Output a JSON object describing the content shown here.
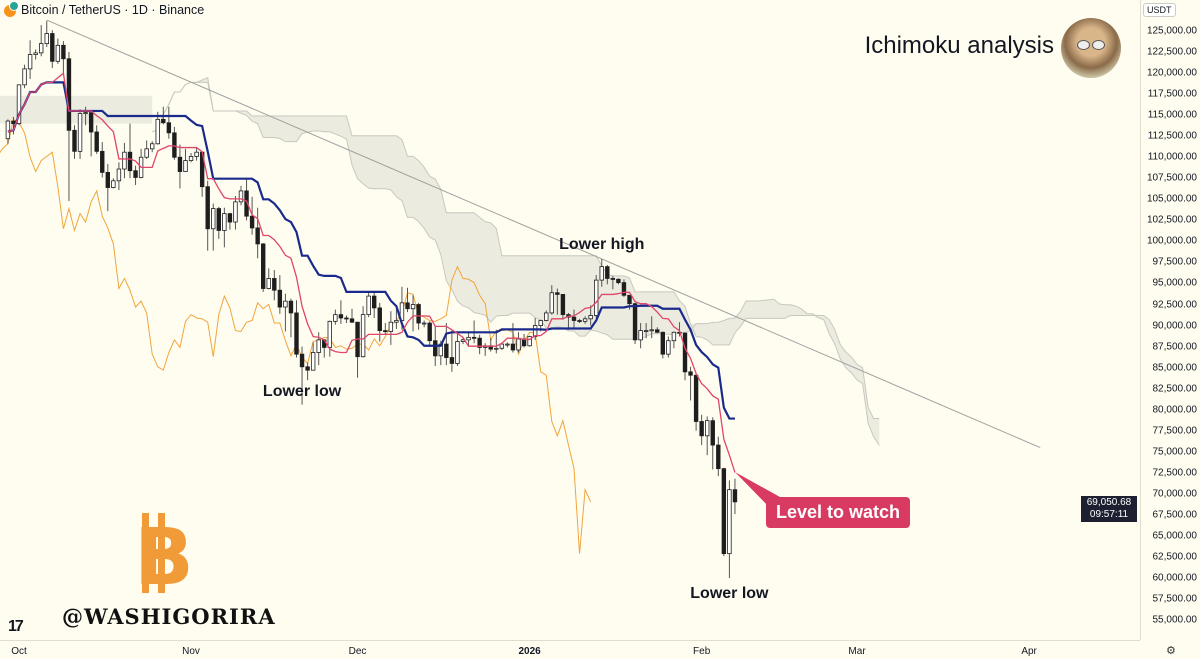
{
  "header": {
    "symbol_title": "Bitcoin / TetherUS · 1D · Binance",
    "icon": "bitcoin-tether-icon"
  },
  "overlay": {
    "title": "Ichimoku analysis",
    "watermark": "@WASHIGORIRA",
    "watermark_logo": "bitcoin-logo",
    "tv_logo": "TradingView"
  },
  "price_axis": {
    "currency": "USDT",
    "labels": [
      "125,000.00",
      "122,500.00",
      "120,000.00",
      "117,500.00",
      "115,000.00",
      "112,500.00",
      "110,000.00",
      "107,500.00",
      "105,000.00",
      "102,500.00",
      "100,000.00",
      "97,500.00",
      "95,000.00",
      "92,500.00",
      "90,000.00",
      "87,500.00",
      "85,000.00",
      "82,500.00",
      "80,000.00",
      "77,500.00",
      "75,000.00",
      "72,500.00",
      "70,000.00",
      "67,500.00",
      "65,000.00",
      "62,500.00",
      "60,000.00",
      "57,500.00",
      "55,000.00"
    ],
    "last_price": "69,050.68",
    "countdown": "09:57:11"
  },
  "time_axis": {
    "labels": [
      {
        "text": "Oct",
        "date": "2025-10-01",
        "bold": false
      },
      {
        "text": "Nov",
        "date": "2025-11-01",
        "bold": false
      },
      {
        "text": "Dec",
        "date": "2025-12-01",
        "bold": false
      },
      {
        "text": "2026",
        "date": "2026-01-01",
        "bold": true
      },
      {
        "text": "Feb",
        "date": "2026-02-01",
        "bold": false
      },
      {
        "text": "Mar",
        "date": "2026-03-01",
        "bold": false
      },
      {
        "text": "Apr",
        "date": "2026-04-01",
        "bold": false
      }
    ]
  },
  "chart_data": {
    "type": "candlestick",
    "title": "Bitcoin / TetherUS · 1D · Binance",
    "ylim": [
      53000,
      127500
    ],
    "grid": false,
    "indicators": [
      "Ichimoku: Tenkan (9)",
      "Kijun (26)",
      "Chikou (26)",
      "Kumo cloud (52)"
    ],
    "colors": {
      "background": "#fffdf0",
      "tenkan": "#e0456a",
      "kijun": "#1a2a8c",
      "chikou": "#f0a53c",
      "cloud": "#dcdcd4",
      "up": "#ffffff",
      "down": "#1e1e1e",
      "trendline": "#a0a0a0",
      "watch": "#d83a62"
    },
    "candles_columns": [
      "date",
      "open",
      "high",
      "low",
      "close"
    ],
    "candles": [
      [
        "2025-09-29",
        112200,
        114500,
        111600,
        114300
      ],
      [
        "2025-09-30",
        114300,
        114800,
        112700,
        114000
      ],
      [
        "2025-10-01",
        114000,
        118600,
        113800,
        118600
      ],
      [
        "2025-10-02",
        118600,
        121000,
        118200,
        120500
      ],
      [
        "2025-10-03",
        120500,
        123900,
        119300,
        122200
      ],
      [
        "2025-10-04",
        122200,
        122800,
        121600,
        122400
      ],
      [
        "2025-10-05",
        122400,
        125700,
        122000,
        123500
      ],
      [
        "2025-10-06",
        123500,
        126200,
        123100,
        124700
      ],
      [
        "2025-10-07",
        124700,
        125100,
        120600,
        121400
      ],
      [
        "2025-10-08",
        121400,
        124100,
        121100,
        123300
      ],
      [
        "2025-10-09",
        123300,
        123800,
        119700,
        121700
      ],
      [
        "2025-10-10",
        121700,
        122500,
        104800,
        113200
      ],
      [
        "2025-10-11",
        113200,
        113800,
        109800,
        110700
      ],
      [
        "2025-10-12",
        110700,
        115700,
        109800,
        115200
      ],
      [
        "2025-10-13",
        115200,
        116000,
        113800,
        115300
      ],
      [
        "2025-10-14",
        115300,
        115500,
        110100,
        113000
      ],
      [
        "2025-10-15",
        113000,
        113800,
        110400,
        110700
      ],
      [
        "2025-10-16",
        110700,
        111800,
        107600,
        108200
      ],
      [
        "2025-10-17",
        108200,
        109200,
        103600,
        106400
      ],
      [
        "2025-10-18",
        106400,
        107500,
        106300,
        107200
      ],
      [
        "2025-10-19",
        107200,
        109400,
        106100,
        108600
      ],
      [
        "2025-10-20",
        108600,
        111700,
        107500,
        110600
      ],
      [
        "2025-10-21",
        110600,
        114000,
        107500,
        108400
      ],
      [
        "2025-10-22",
        108400,
        109000,
        106700,
        107600
      ],
      [
        "2025-10-23",
        107600,
        111000,
        107500,
        110000
      ],
      [
        "2025-10-24",
        110000,
        112000,
        109800,
        111000
      ],
      [
        "2025-10-25",
        111000,
        111900,
        110600,
        111600
      ],
      [
        "2025-10-26",
        111600,
        115400,
        111500,
        114500
      ],
      [
        "2025-10-27",
        114500,
        116000,
        113900,
        114100
      ],
      [
        "2025-10-28",
        114100,
        116000,
        112200,
        112900
      ],
      [
        "2025-10-29",
        112900,
        113600,
        109700,
        110000
      ],
      [
        "2025-10-30",
        110000,
        111500,
        106300,
        108300
      ],
      [
        "2025-10-31",
        108300,
        111000,
        108300,
        109600
      ],
      [
        "2025-11-01",
        109600,
        110500,
        109400,
        110100
      ],
      [
        "2025-11-02",
        110100,
        111200,
        109600,
        110600
      ],
      [
        "2025-11-03",
        110600,
        110700,
        105300,
        106500
      ],
      [
        "2025-11-04",
        106500,
        107200,
        98900,
        101500
      ],
      [
        "2025-11-05",
        101500,
        104500,
        98900,
        103900
      ],
      [
        "2025-11-06",
        103900,
        104100,
        100300,
        101300
      ],
      [
        "2025-11-07",
        101300,
        104000,
        99300,
        103300
      ],
      [
        "2025-11-08",
        103300,
        103400,
        101400,
        102300
      ],
      [
        "2025-11-09",
        102300,
        105400,
        101400,
        104700
      ],
      [
        "2025-11-10",
        104700,
        106600,
        104300,
        106000
      ],
      [
        "2025-11-11",
        106000,
        107400,
        102500,
        103000
      ],
      [
        "2025-11-12",
        103000,
        105300,
        100800,
        101600
      ],
      [
        "2025-11-13",
        101600,
        104000,
        98000,
        99700
      ],
      [
        "2025-11-14",
        99700,
        99800,
        94000,
        94400
      ],
      [
        "2025-11-15",
        94400,
        96800,
        94300,
        95600
      ],
      [
        "2025-11-16",
        95600,
        96600,
        93000,
        94200
      ],
      [
        "2025-11-17",
        94200,
        96000,
        91400,
        92200
      ],
      [
        "2025-11-18",
        92200,
        93800,
        89300,
        92900
      ],
      [
        "2025-11-19",
        92900,
        93200,
        88600,
        91500
      ],
      [
        "2025-11-20",
        91500,
        93000,
        86200,
        86600
      ],
      [
        "2025-11-21",
        86600,
        87500,
        80600,
        85100
      ],
      [
        "2025-11-22",
        85100,
        85600,
        83500,
        84700
      ],
      [
        "2025-11-23",
        84700,
        88000,
        84700,
        86800
      ],
      [
        "2025-11-24",
        86800,
        89200,
        85300,
        88300
      ],
      [
        "2025-11-25",
        88300,
        88400,
        86200,
        87400
      ],
      [
        "2025-11-26",
        87400,
        90600,
        86300,
        90500
      ],
      [
        "2025-11-27",
        90500,
        91900,
        90100,
        91300
      ],
      [
        "2025-11-28",
        91300,
        93000,
        90200,
        90900
      ],
      [
        "2025-11-29",
        90900,
        91200,
        90300,
        90800
      ],
      [
        "2025-11-30",
        90800,
        92000,
        90300,
        90400
      ],
      [
        "2025-12-01",
        90400,
        90400,
        83800,
        86300
      ],
      [
        "2025-12-02",
        86300,
        92300,
        86200,
        91300
      ],
      [
        "2025-12-03",
        91300,
        94100,
        91000,
        93500
      ],
      [
        "2025-12-04",
        93500,
        94000,
        90900,
        92100
      ],
      [
        "2025-12-05",
        92100,
        92700,
        88100,
        89400
      ],
      [
        "2025-12-06",
        89400,
        90300,
        88900,
        89300
      ],
      [
        "2025-12-07",
        89300,
        91700,
        87700,
        90400
      ],
      [
        "2025-12-08",
        90400,
        92300,
        89600,
        90600
      ],
      [
        "2025-12-09",
        90600,
        94600,
        89500,
        92700
      ],
      [
        "2025-12-10",
        92700,
        94500,
        91600,
        92000
      ],
      [
        "2025-12-11",
        92000,
        93600,
        89300,
        92500
      ],
      [
        "2025-12-12",
        92500,
        92700,
        89500,
        90300
      ],
      [
        "2025-12-13",
        90300,
        90600,
        89800,
        90300
      ],
      [
        "2025-12-14",
        90300,
        90500,
        87600,
        88200
      ],
      [
        "2025-12-15",
        88200,
        90000,
        85200,
        86400
      ],
      [
        "2025-12-16",
        86400,
        88200,
        85300,
        87800
      ],
      [
        "2025-12-17",
        87800,
        90300,
        85300,
        86200
      ],
      [
        "2025-12-18",
        86200,
        89400,
        84500,
        85500
      ],
      [
        "2025-12-19",
        85500,
        89000,
        85200,
        88100
      ],
      [
        "2025-12-20",
        88100,
        88500,
        87800,
        88300
      ],
      [
        "2025-12-21",
        88300,
        89100,
        87600,
        88600
      ],
      [
        "2025-12-22",
        88600,
        90600,
        87900,
        88500
      ],
      [
        "2025-12-23",
        88500,
        88900,
        86600,
        87400
      ],
      [
        "2025-12-24",
        87400,
        87900,
        86400,
        87600
      ],
      [
        "2025-12-25",
        87600,
        88500,
        86900,
        87200
      ],
      [
        "2025-12-26",
        87200,
        89500,
        86700,
        87300
      ],
      [
        "2025-12-27",
        87300,
        87900,
        87100,
        87800
      ],
      [
        "2025-12-28",
        87800,
        88000,
        87400,
        87800
      ],
      [
        "2025-12-29",
        87800,
        90300,
        86800,
        87100
      ],
      [
        "2025-12-30",
        87100,
        89200,
        86800,
        88400
      ],
      [
        "2025-12-31",
        88400,
        89000,
        87400,
        87600
      ],
      [
        "2026-01-01",
        87600,
        88800,
        87500,
        88700
      ],
      [
        "2026-01-02",
        88700,
        90900,
        88300,
        90000
      ],
      [
        "2026-01-03",
        90000,
        90700,
        89300,
        90600
      ],
      [
        "2026-01-04",
        90600,
        91800,
        90500,
        91500
      ],
      [
        "2026-01-05",
        91500,
        94800,
        91300,
        93900
      ],
      [
        "2026-01-06",
        93900,
        94400,
        91300,
        93700
      ],
      [
        "2026-01-07",
        93700,
        93700,
        90700,
        91300
      ],
      [
        "2026-01-08",
        91300,
        91500,
        89500,
        91000
      ],
      [
        "2026-01-09",
        91000,
        91900,
        89700,
        90600
      ],
      [
        "2026-01-10",
        90600,
        90800,
        90300,
        90500
      ],
      [
        "2026-01-11",
        90500,
        91100,
        90200,
        90800
      ],
      [
        "2026-01-12",
        90800,
        92400,
        90000,
        91200
      ],
      [
        "2026-01-13",
        91200,
        96000,
        90900,
        95400
      ],
      [
        "2026-01-14",
        95400,
        97900,
        94600,
        97000
      ],
      [
        "2026-01-15",
        97000,
        97200,
        94900,
        95600
      ],
      [
        "2026-01-16",
        95600,
        95900,
        94300,
        95500
      ],
      [
        "2026-01-17",
        95500,
        95600,
        94900,
        95100
      ],
      [
        "2026-01-18",
        95100,
        95500,
        93400,
        93600
      ],
      [
        "2026-01-19",
        93600,
        93600,
        91900,
        92600
      ],
      [
        "2026-01-20",
        92600,
        92700,
        87800,
        88300
      ],
      [
        "2026-01-21",
        88300,
        90300,
        87300,
        89400
      ],
      [
        "2026-01-22",
        89400,
        90300,
        88500,
        89400
      ],
      [
        "2026-01-23",
        89400,
        91100,
        88500,
        89500
      ],
      [
        "2026-01-24",
        89500,
        89800,
        89100,
        89200
      ],
      [
        "2026-01-25",
        89200,
        89300,
        86100,
        86600
      ],
      [
        "2026-01-26",
        86600,
        88700,
        86200,
        88200
      ],
      [
        "2026-01-27",
        88200,
        89300,
        87300,
        89200
      ],
      [
        "2026-01-28",
        89200,
        90400,
        88700,
        89100
      ],
      [
        "2026-01-29",
        89100,
        89200,
        83500,
        84500
      ],
      [
        "2026-01-30",
        84500,
        85100,
        81100,
        84100
      ],
      [
        "2026-01-31",
        84100,
        84200,
        77500,
        78600
      ],
      [
        "2026-02-01",
        78600,
        79400,
        75800,
        76900
      ],
      [
        "2026-02-02",
        76900,
        79200,
        74600,
        78700
      ],
      [
        "2026-02-03",
        78700,
        79100,
        72900,
        75800
      ],
      [
        "2026-02-04",
        75800,
        76800,
        72100,
        73000
      ],
      [
        "2026-02-05",
        73000,
        73100,
        62600,
        62900
      ],
      [
        "2026-02-06",
        62900,
        71600,
        60000,
        70500
      ],
      [
        "2026-02-07",
        70500,
        71800,
        67600,
        69050
      ]
    ],
    "trendline": [
      {
        "date": "2025-10-06",
        "price": 126300
      },
      {
        "date": "2026-04-03",
        "price": 75500
      }
    ],
    "annotations": [
      {
        "text": "Lower low",
        "date": "2025-11-21",
        "price": 82000
      },
      {
        "text": "Lower high",
        "date": "2026-01-14",
        "price": 99500
      },
      {
        "text": "Lower low",
        "date": "2026-02-06",
        "price": 58000
      },
      {
        "text": "Level to watch",
        "date": "2026-02-07",
        "price": 72600
      }
    ]
  }
}
